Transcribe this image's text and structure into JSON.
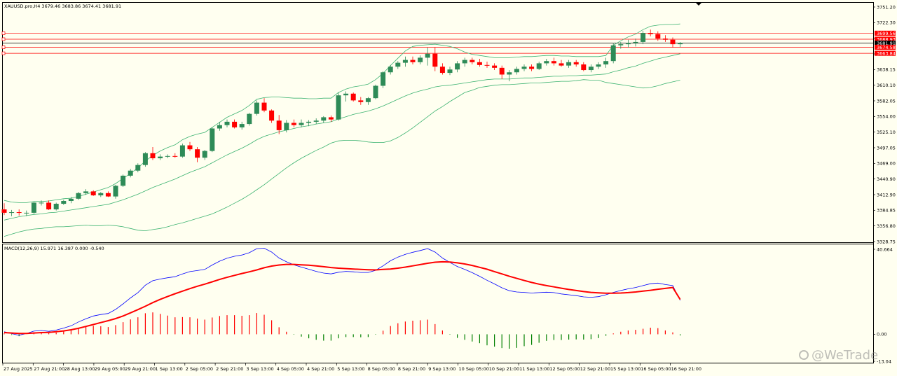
{
  "window": {
    "symbol_header": "XAUUSD.pro,H4  3679.46 3683.86 3674.41 3681.91",
    "macd_header": "MACD(12,26,9) 15.971 16.387 0.000 -0.540"
  },
  "colors": {
    "background": "#fffff0",
    "bull": "#2e8b57",
    "bear": "#ff0000",
    "bollinger": "#3cb371",
    "macd_line": "#0000ff",
    "signal_line": "#ff0000",
    "hist_pos": "#ff0000",
    "hist_neg": "#008000",
    "level_line": "#ff0000"
  },
  "price_axis": {
    "labels": [
      "3751.20",
      "3722.30",
      "3694.10",
      "3666.00",
      "3638.15",
      "3610.10",
      "3582.05",
      "3554.00",
      "3525.10",
      "3497.05",
      "3469.00",
      "3440.90",
      "3412.90",
      "3384.85",
      "3356.80",
      "3328.75"
    ]
  },
  "price_levels": [
    {
      "label": "3699.56",
      "value": 3699.56
    },
    {
      "label": "3688.93",
      "value": 3688.93
    },
    {
      "label": "3681.91",
      "value": 3681.91,
      "current": true
    },
    {
      "label": "3674.58",
      "value": 3674.58
    },
    {
      "label": "3663.84",
      "value": 3663.84
    }
  ],
  "macd_axis": {
    "labels": [
      "40.664",
      "0.00",
      "-13.04"
    ]
  },
  "time_axis": {
    "labels": [
      "27 Aug 2025",
      "27 Aug 21:00",
      "28 Aug 13:00",
      "29 Aug 05:00",
      "29 Aug 21:00",
      "1 Sep 13:00",
      "2 Sep 05:00",
      "2 Sep 21:00",
      "3 Sep 13:00",
      "4 Sep 05:00",
      "4 Sep 21:00",
      "5 Sep 13:00",
      "8 Sep 05:00",
      "8 Sep 21:00",
      "9 Sep 13:00",
      "10 Sep 05:00",
      "10 Sep 21:00",
      "11 Sep 13:00",
      "12 Sep 05:00",
      "12 Sep 21:00",
      "15 Sep 13:00",
      "16 Sep 05:00",
      "16 Sep 21:00"
    ]
  },
  "watermark": "@WeTrade",
  "chart_data": [
    {
      "type": "candlestick",
      "title": "XAUUSD.pro,H4",
      "ohlc_columns": [
        "open",
        "high",
        "low",
        "close"
      ],
      "candles": [
        [
          3386,
          3397,
          3376,
          3380
        ],
        [
          3380,
          3385,
          3374,
          3381
        ],
        [
          3381,
          3386,
          3375,
          3380
        ],
        [
          3380,
          3384,
          3374,
          3380
        ],
        [
          3380,
          3399,
          3378,
          3398
        ],
        [
          3398,
          3402,
          3393,
          3398
        ],
        [
          3398,
          3402,
          3385,
          3386
        ],
        [
          3386,
          3398,
          3384,
          3396
        ],
        [
          3396,
          3403,
          3394,
          3401
        ],
        [
          3401,
          3408,
          3397,
          3405
        ],
        [
          3405,
          3417,
          3403,
          3415
        ],
        [
          3415,
          3422,
          3412,
          3418
        ],
        [
          3418,
          3420,
          3410,
          3411
        ],
        [
          3411,
          3417,
          3408,
          3415
        ],
        [
          3415,
          3418,
          3408,
          3409
        ],
        [
          3409,
          3430,
          3405,
          3428
        ],
        [
          3428,
          3448,
          3426,
          3446
        ],
        [
          3446,
          3458,
          3443,
          3455
        ],
        [
          3455,
          3468,
          3452,
          3465
        ],
        [
          3465,
          3488,
          3462,
          3486
        ],
        [
          3486,
          3497,
          3474,
          3477
        ],
        [
          3477,
          3484,
          3474,
          3480
        ],
        [
          3480,
          3484,
          3477,
          3481
        ],
        [
          3481,
          3486,
          3478,
          3480
        ],
        [
          3480,
          3503,
          3478,
          3500
        ],
        [
          3500,
          3506,
          3490,
          3493
        ],
        [
          3493,
          3497,
          3470,
          3478
        ],
        [
          3478,
          3492,
          3474,
          3490
        ],
        [
          3490,
          3532,
          3488,
          3530
        ],
        [
          3530,
          3542,
          3526,
          3536
        ],
        [
          3536,
          3546,
          3532,
          3542
        ],
        [
          3542,
          3546,
          3530,
          3532
        ],
        [
          3532,
          3542,
          3528,
          3538
        ],
        [
          3538,
          3558,
          3535,
          3556
        ],
        [
          3556,
          3580,
          3553,
          3576
        ],
        [
          3576,
          3584,
          3559,
          3562
        ],
        [
          3562,
          3564,
          3540,
          3544
        ],
        [
          3544,
          3554,
          3520,
          3527
        ],
        [
          3527,
          3545,
          3523,
          3540
        ],
        [
          3540,
          3546,
          3532,
          3536
        ],
        [
          3536,
          3546,
          3532,
          3540
        ],
        [
          3540,
          3545,
          3534,
          3542
        ],
        [
          3542,
          3548,
          3538,
          3544
        ],
        [
          3544,
          3552,
          3540,
          3550
        ],
        [
          3550,
          3553,
          3542,
          3546
        ],
        [
          3546,
          3594,
          3544,
          3589
        ],
        [
          3589,
          3596,
          3578,
          3592
        ],
        [
          3592,
          3594,
          3578,
          3580
        ],
        [
          3580,
          3586,
          3572,
          3577
        ],
        [
          3577,
          3586,
          3572,
          3584
        ],
        [
          3584,
          3608,
          3582,
          3606
        ],
        [
          3606,
          3632,
          3602,
          3630
        ],
        [
          3630,
          3643,
          3626,
          3640
        ],
        [
          3640,
          3650,
          3636,
          3647
        ],
        [
          3647,
          3658,
          3640,
          3652
        ],
        [
          3652,
          3658,
          3644,
          3648
        ],
        [
          3648,
          3660,
          3644,
          3656
        ],
        [
          3656,
          3674,
          3642,
          3663
        ],
        [
          3663,
          3674,
          3632,
          3640
        ],
        [
          3640,
          3646,
          3626,
          3629
        ],
        [
          3629,
          3640,
          3625,
          3635
        ],
        [
          3635,
          3650,
          3630,
          3646
        ],
        [
          3646,
          3656,
          3640,
          3652
        ],
        [
          3652,
          3656,
          3644,
          3648
        ],
        [
          3648,
          3654,
          3640,
          3643
        ],
        [
          3643,
          3649,
          3638,
          3642
        ],
        [
          3642,
          3646,
          3634,
          3638
        ],
        [
          3638,
          3642,
          3618,
          3626
        ],
        [
          3626,
          3634,
          3614,
          3630
        ],
        [
          3630,
          3640,
          3626,
          3636
        ],
        [
          3636,
          3644,
          3632,
          3640
        ],
        [
          3640,
          3644,
          3632,
          3636
        ],
        [
          3636,
          3649,
          3634,
          3646
        ],
        [
          3646,
          3654,
          3642,
          3650
        ],
        [
          3650,
          3656,
          3642,
          3646
        ],
        [
          3646,
          3652,
          3640,
          3642
        ],
        [
          3642,
          3652,
          3638,
          3648
        ],
        [
          3648,
          3652,
          3640,
          3644
        ],
        [
          3644,
          3648,
          3632,
          3634
        ],
        [
          3634,
          3644,
          3630,
          3640
        ],
        [
          3640,
          3648,
          3636,
          3644
        ],
        [
          3644,
          3656,
          3638,
          3650
        ],
        [
          3650,
          3682,
          3646,
          3678
        ],
        [
          3678,
          3684,
          3672,
          3680
        ],
        [
          3680,
          3688,
          3674,
          3682
        ],
        [
          3682,
          3690,
          3676,
          3684
        ],
        [
          3684,
          3704,
          3680,
          3700
        ],
        [
          3700,
          3706,
          3694,
          3698
        ],
        [
          3698,
          3703,
          3686,
          3690
        ],
        [
          3690,
          3696,
          3684,
          3688
        ],
        [
          3688,
          3692,
          3674,
          3680
        ],
        [
          3680,
          3683.86,
          3674.41,
          3681.91
        ]
      ],
      "bollinger": {
        "upper": [
          3402,
          3399,
          3398,
          3398,
          3400,
          3400,
          3401,
          3403,
          3405,
          3406,
          3409,
          3413,
          3417,
          3421,
          3425,
          3432,
          3441,
          3450,
          3460,
          3472,
          3482,
          3490,
          3496,
          3501,
          3510,
          3516,
          3520,
          3523,
          3532,
          3541,
          3550,
          3556,
          3562,
          3571,
          3582,
          3585,
          3586,
          3586,
          3585,
          3584,
          3584,
          3583,
          3583,
          3584,
          3584,
          3594,
          3600,
          3604,
          3606,
          3609,
          3617,
          3628,
          3642,
          3655,
          3668,
          3676,
          3678,
          3679,
          3680,
          3678,
          3676,
          3672,
          3666,
          3662,
          3660,
          3658,
          3656,
          3656,
          3656,
          3657,
          3658,
          3658,
          3659,
          3660,
          3660,
          3659,
          3659,
          3658,
          3658,
          3658,
          3658,
          3660,
          3678,
          3686,
          3693,
          3698,
          3706,
          3712,
          3714,
          3715,
          3715,
          3716
        ],
        "middle": [
          3367,
          3370,
          3373,
          3375,
          3377,
          3378,
          3380,
          3381,
          3383,
          3385,
          3387,
          3389,
          3391,
          3393,
          3395,
          3399,
          3403,
          3408,
          3413,
          3419,
          3425,
          3430,
          3435,
          3440,
          3446,
          3452,
          3457,
          3462,
          3469,
          3476,
          3483,
          3489,
          3495,
          3502,
          3510,
          3516,
          3520,
          3524,
          3527,
          3530,
          3533,
          3535,
          3538,
          3540,
          3542,
          3547,
          3551,
          3555,
          3558,
          3561,
          3565,
          3570,
          3576,
          3582,
          3588,
          3593,
          3597,
          3600,
          3604,
          3606,
          3607,
          3609,
          3611,
          3613,
          3615,
          3617,
          3618,
          3618,
          3618,
          3619,
          3620,
          3620,
          3621,
          3622,
          3623,
          3623,
          3624,
          3624,
          3625,
          3625,
          3626,
          3627,
          3631,
          3634,
          3638,
          3641,
          3646,
          3650,
          3654,
          3657,
          3660,
          3663
        ],
        "lower": [
          3338,
          3342,
          3346,
          3349,
          3351,
          3352,
          3354,
          3355,
          3355,
          3356,
          3357,
          3358,
          3357,
          3357,
          3358,
          3357,
          3355,
          3352,
          3349,
          3348,
          3350,
          3352,
          3355,
          3359,
          3362,
          3366,
          3370,
          3374,
          3378,
          3384,
          3390,
          3397,
          3404,
          3412,
          3421,
          3430,
          3440,
          3450,
          3460,
          3469,
          3477,
          3484,
          3491,
          3497,
          3504,
          3508,
          3509,
          3509,
          3508,
          3506,
          3505,
          3505,
          3508,
          3514,
          3522,
          3531,
          3541,
          3551,
          3561,
          3569,
          3578,
          3586,
          3594,
          3598,
          3603,
          3605,
          3607,
          3608,
          3608,
          3609,
          3610,
          3611,
          3611,
          3612,
          3613,
          3614,
          3614,
          3615,
          3617,
          3616,
          3616,
          3612,
          3610,
          3608,
          3606,
          3604,
          3602,
          3603,
          3606,
          3610,
          3613,
          3616
        ]
      },
      "ylim": [
        3328.75,
        3751.2
      ]
    },
    {
      "type": "line",
      "title": "MACD(12,26,9)",
      "macd": [
        1.2,
        0.3,
        -0.5,
        0.4,
        1.5,
        1.8,
        1.4,
        2,
        2.9,
        4,
        5.8,
        7.3,
        8.6,
        9.3,
        9.8,
        11.7,
        14.3,
        17.1,
        19.6,
        23.1,
        25.2,
        26,
        26.6,
        27.1,
        28.4,
        29.5,
        30,
        30.5,
        32.6,
        34.4,
        35.8,
        36.7,
        37.3,
        38.4,
        40.3,
        40.5,
        38.7,
        35.9,
        34.1,
        32.7,
        31.6,
        30.6,
        29.6,
        28.8,
        28.4,
        29.2,
        29.6,
        29.4,
        29.1,
        29.1,
        30.1,
        32.2,
        34.6,
        36.3,
        37.6,
        38.6,
        39.4,
        40.3,
        38.7,
        35.9,
        33.8,
        31.9,
        30.5,
        29,
        27.3,
        25.4,
        23.7,
        21.9,
        20.5,
        19.9,
        19.7,
        19.4,
        19.6,
        19.8,
        19.6,
        19,
        18.6,
        18.2,
        17.6,
        17.4,
        17.7,
        18.6,
        19.7,
        20.6,
        21.4,
        22,
        22.9,
        23.8,
        24.1,
        23.4,
        22.9,
        15.971
      ],
      "signal": [
        0.8,
        0.6,
        0.4,
        0.4,
        0.6,
        0.8,
        0.9,
        1.2,
        1.6,
        2.1,
        2.8,
        3.7,
        4.6,
        5.5,
        6.4,
        7.4,
        8.6,
        10.1,
        11.6,
        13.2,
        14.9,
        16.4,
        17.8,
        19.1,
        20.3,
        21.5,
        22.6,
        23.6,
        24.7,
        25.8,
        26.8,
        27.7,
        28.6,
        29.4,
        30.3,
        31.3,
        32.1,
        32.6,
        32.9,
        32.9,
        32.7,
        32.5,
        32.2,
        31.8,
        31.4,
        31.1,
        30.9,
        30.7,
        30.5,
        30.4,
        30.3,
        30.5,
        30.7,
        31.1,
        31.6,
        32.2,
        32.8,
        33.4,
        33.9,
        34.1,
        34,
        33.6,
        33.1,
        32.4,
        31.5,
        30.6,
        29.5,
        28.4,
        27.3,
        26.3,
        25.3,
        24.4,
        23.6,
        22.9,
        22.3,
        21.7,
        21.1,
        20.6,
        20.1,
        19.7,
        19.5,
        19.3,
        19.3,
        19.4,
        19.6,
        19.9,
        20.3,
        20.7,
        21.2,
        21.6,
        22,
        16.387
      ],
      "histogram": [
        0.4,
        -0.3,
        -0.9,
        0,
        0.9,
        1,
        0.5,
        0.8,
        1.3,
        1.9,
        3,
        3.6,
        4,
        3.8,
        3.4,
        4.3,
        5.7,
        7,
        8,
        9.9,
        10.3,
        9.6,
        8.8,
        8,
        8.1,
        8,
        7.4,
        6.9,
        7.9,
        8.6,
        9,
        9,
        8.7,
        9,
        10,
        9.2,
        6.6,
        3.3,
        1.2,
        -0.2,
        -1.1,
        -1.9,
        -2.6,
        -3,
        -3,
        -1.9,
        -1.3,
        -1.3,
        -1.4,
        -1.3,
        -0.2,
        1.7,
        3.9,
        5.2,
        6,
        6.4,
        6.6,
        6.9,
        4.8,
        1.8,
        -0.2,
        -1.7,
        -2.6,
        -3.4,
        -4.2,
        -5.2,
        -5.8,
        -6.5,
        -6.8,
        -6.4,
        -5.6,
        -5,
        -4,
        -3.1,
        -2.7,
        -2.7,
        -2.5,
        -2.4,
        -2.5,
        -2.3,
        -1.8,
        -0.7,
        0.4,
        1.2,
        1.8,
        2.1,
        2.6,
        3.1,
        2.9,
        1.8,
        0.9,
        -0.54
      ],
      "ylim": [
        -13.04,
        40.664
      ]
    }
  ]
}
